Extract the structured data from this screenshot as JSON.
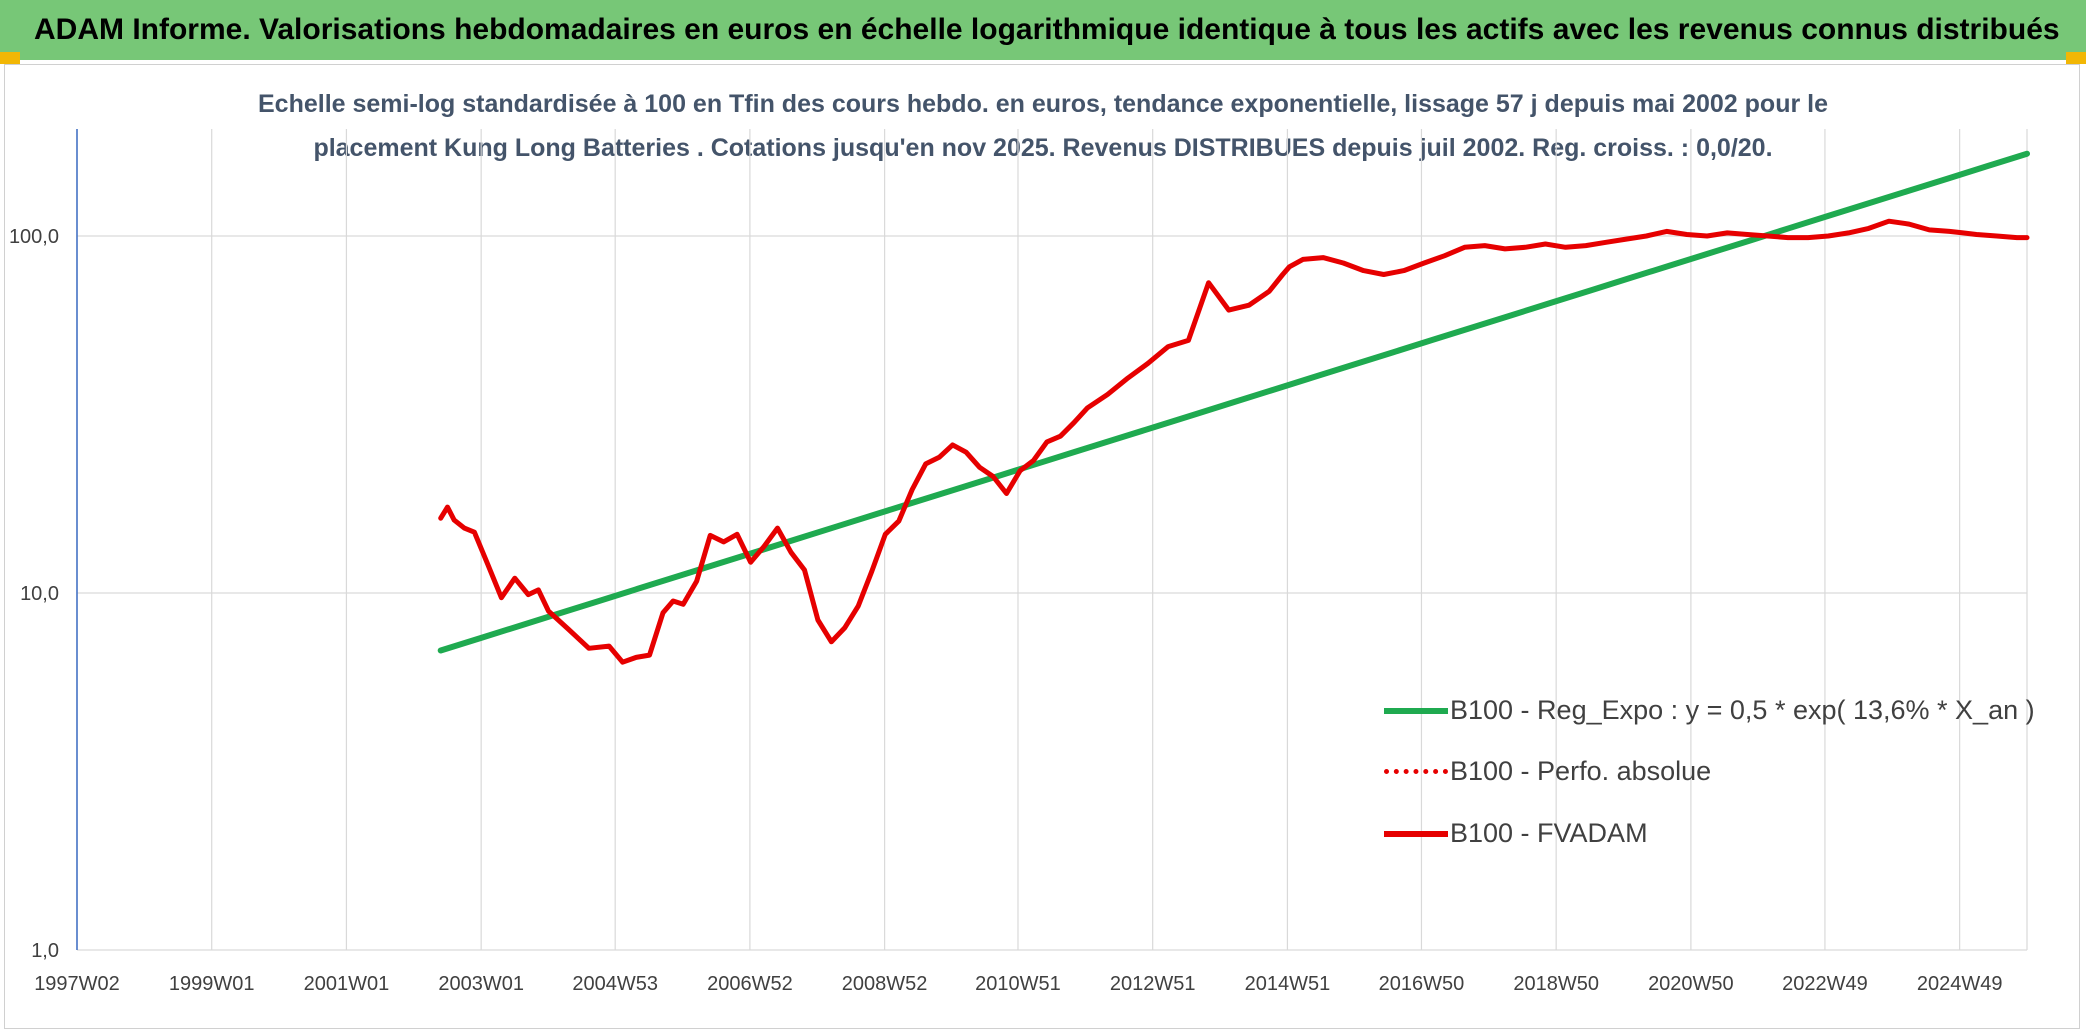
{
  "header": {
    "title": "ADAM Informe. Valorisations hebdomadaires en euros en échelle logarithmique identique à tous les actifs avec les revenus connus distribués"
  },
  "colors": {
    "header_bg": "#77c777",
    "trend": "#1faa50",
    "series": "#e60000",
    "subtitle": "#44546a",
    "axis": "#4472c4",
    "grid": "#d9d9d9"
  },
  "chart_data": {
    "type": "line",
    "title_lines": [
      "Echelle semi-log standardisée à 100 en Tfin des cours hebdo. en euros, tendance exponentielle, lissage 57 j depuis mai 2002 pour le",
      "placement Kung Long Batteries . Cotations jusqu'en nov 2025. Revenus DISTRIBUES depuis juil 2002. Reg. croiss. : 0,0/20."
    ],
    "y_scale": "log",
    "ylim": [
      1,
      180
    ],
    "y_ticks": [
      1,
      10,
      100
    ],
    "y_tick_labels": [
      "1,0",
      "10,0",
      "100,0"
    ],
    "xlim": [
      1997.0,
      2025.95
    ],
    "x_ticks": [
      1997.0,
      1999.0,
      2001.0,
      2003.0,
      2004.99,
      2006.99,
      2008.99,
      2010.97,
      2012.97,
      2014.97,
      2016.96,
      2018.96,
      2020.96,
      2022.95,
      2024.95
    ],
    "x_tick_labels": [
      "1997W02",
      "1999W01",
      "2001W01",
      "2003W01",
      "2004W53",
      "2006W52",
      "2008W52",
      "2010W51",
      "2012W51",
      "2014W51",
      "2016W50",
      "2018W50",
      "2020W50",
      "2022W49",
      "2024W49"
    ],
    "grid": "vertical and horizontal",
    "legend_position": "bottom-right",
    "series": [
      {
        "name": "B100 - Reg_Expo : y = 0,5 * exp( 13,6% *  X_an )",
        "style": "solid",
        "x": [
          2002.4,
          2025.95
        ],
        "y": [
          6.9,
          170
        ]
      },
      {
        "name": "B100 - Perfo. absolue",
        "style": "dotted",
        "x": [],
        "y": []
      },
      {
        "name": "B100 - FVADAM",
        "style": "solid",
        "x": [
          2002.4,
          2002.5,
          2002.6,
          2002.75,
          2002.9,
          2003.1,
          2003.3,
          2003.5,
          2003.7,
          2003.85,
          2004.0,
          2004.3,
          2004.6,
          2004.9,
          2005.1,
          2005.3,
          2005.5,
          2005.7,
          2005.85,
          2006.0,
          2006.2,
          2006.4,
          2006.6,
          2006.8,
          2007.0,
          2007.2,
          2007.4,
          2007.6,
          2007.8,
          2008.0,
          2008.2,
          2008.4,
          2008.6,
          2008.8,
          2009.0,
          2009.2,
          2009.4,
          2009.6,
          2009.8,
          2010.0,
          2010.2,
          2010.4,
          2010.6,
          2010.8,
          2011.0,
          2011.2,
          2011.4,
          2011.6,
          2011.8,
          2012.0,
          2012.3,
          2012.6,
          2012.9,
          2013.2,
          2013.5,
          2013.8,
          2014.1,
          2014.4,
          2014.7,
          2014.9,
          2015.0,
          2015.2,
          2015.5,
          2015.8,
          2016.1,
          2016.4,
          2016.7,
          2017.0,
          2017.3,
          2017.6,
          2017.9,
          2018.2,
          2018.5,
          2018.8,
          2019.1,
          2019.4,
          2019.7,
          2020.0,
          2020.3,
          2020.6,
          2020.9,
          2021.2,
          2021.5,
          2021.8,
          2022.1,
          2022.4,
          2022.7,
          2023.0,
          2023.3,
          2023.6,
          2023.9,
          2024.2,
          2024.5,
          2024.8,
          2025.0,
          2025.2,
          2025.5,
          2025.8,
          2025.95
        ],
        "y": [
          16.2,
          17.4,
          16.0,
          15.2,
          14.8,
          12.0,
          9.7,
          11.0,
          9.9,
          10.2,
          8.9,
          7.9,
          7.0,
          7.1,
          6.4,
          6.6,
          6.7,
          8.8,
          9.5,
          9.3,
          10.8,
          14.5,
          13.9,
          14.6,
          12.2,
          13.5,
          15.2,
          13.0,
          11.6,
          8.4,
          7.3,
          8.0,
          9.2,
          11.5,
          14.6,
          15.9,
          19.5,
          23.0,
          24.0,
          26.0,
          24.8,
          22.5,
          21.2,
          19.0,
          22.0,
          23.5,
          26.5,
          27.5,
          30.0,
          33.0,
          36.0,
          40.0,
          44.0,
          49.0,
          51.0,
          74.0,
          62.0,
          64.0,
          70.0,
          78.0,
          82.0,
          86.0,
          87.0,
          84.0,
          80.0,
          78.0,
          80.0,
          84.0,
          88.0,
          93.0,
          94.0,
          92.0,
          93.0,
          95.0,
          93.0,
          94.0,
          96.0,
          98.0,
          100.0,
          103.0,
          101.0,
          100.0,
          102.0,
          101.0,
          100.0,
          99.0,
          99.0,
          100.0,
          102.0,
          105.0,
          110.0,
          108.0,
          104.0,
          103.0,
          102.0,
          101.0,
          100.0,
          99.0,
          99.0
        ]
      }
    ]
  }
}
